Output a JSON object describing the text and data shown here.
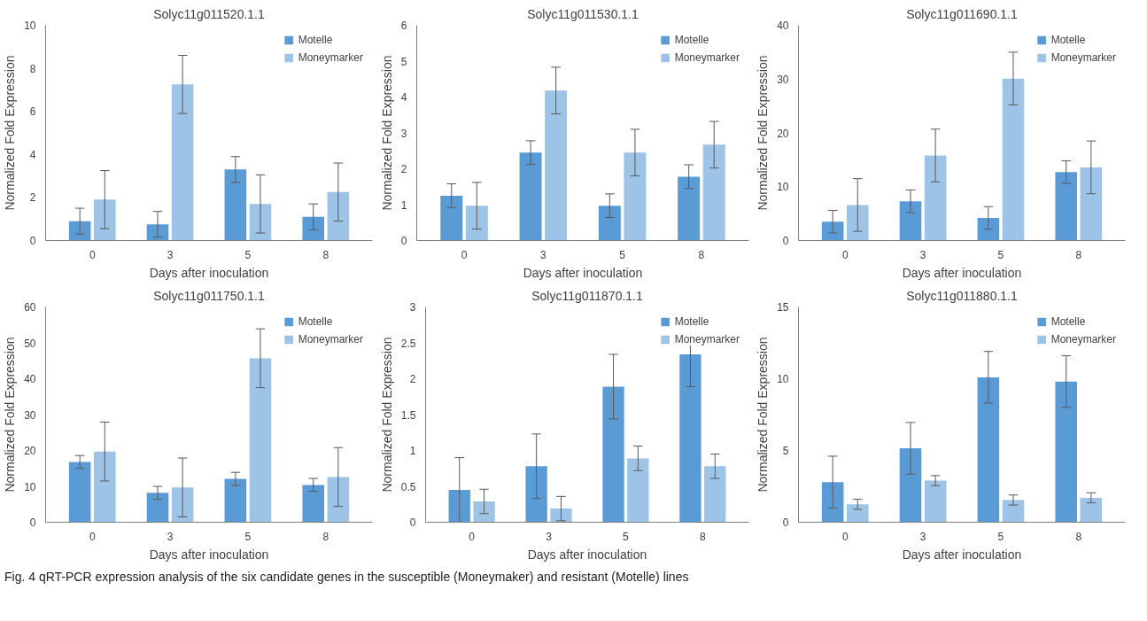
{
  "chart_data": [
    {
      "type": "bar",
      "title": "Solyc11g011520.1.1",
      "xlabel": "Days after inoculation",
      "ylabel": "Normalized Fold Expression",
      "categories": [
        "0",
        "3",
        "5",
        "8"
      ],
      "ylim": [
        0,
        10
      ],
      "yticks": [
        0,
        2,
        4,
        6,
        8,
        10
      ],
      "grid": false,
      "legend": "top right",
      "series": [
        {
          "name": "Motelle",
          "color": "#5b9bd5",
          "values": [
            0.9,
            0.75,
            3.3,
            1.1
          ],
          "errors": [
            0.6,
            0.6,
            0.6,
            0.6
          ]
        },
        {
          "name": "Moneymarker",
          "color": "#9dc3e6",
          "values": [
            1.9,
            7.25,
            1.7,
            2.25
          ],
          "errors": [
            1.35,
            1.35,
            1.35,
            1.35
          ]
        }
      ]
    },
    {
      "type": "bar",
      "title": "Solyc11g011530.1.1",
      "xlabel": "Days after inoculation",
      "ylabel": "Normalized Fold Expression",
      "categories": [
        "0",
        "3",
        "5",
        "8"
      ],
      "ylim": [
        0,
        6
      ],
      "yticks": [
        0,
        1,
        2,
        3,
        4,
        5,
        6
      ],
      "grid": false,
      "legend": "top right",
      "series": [
        {
          "name": "Motelle",
          "color": "#5b9bd5",
          "values": [
            1.25,
            2.45,
            0.97,
            1.78
          ],
          "errors": [
            0.33,
            0.33,
            0.33,
            0.33
          ]
        },
        {
          "name": "Moneymarker",
          "color": "#9dc3e6",
          "values": [
            0.97,
            4.18,
            2.45,
            2.67
          ],
          "errors": [
            0.65,
            0.65,
            0.65,
            0.65
          ]
        }
      ]
    },
    {
      "type": "bar",
      "title": "Solyc11g011690.1.1",
      "xlabel": "Days after inoculation",
      "ylabel": "Normalized Fold Expression",
      "categories": [
        "0",
        "3",
        "5",
        "8"
      ],
      "ylim": [
        0,
        40
      ],
      "yticks": [
        0,
        10,
        20,
        30,
        40
      ],
      "grid": false,
      "legend": "top right",
      "series": [
        {
          "name": "Motelle",
          "color": "#5b9bd5",
          "values": [
            3.5,
            7.3,
            4.2,
            12.7
          ],
          "errors": [
            2.1,
            2.1,
            2.1,
            2.1
          ]
        },
        {
          "name": "Moneymarker",
          "color": "#9dc3e6",
          "values": [
            6.6,
            15.8,
            30.1,
            13.6
          ],
          "errors": [
            4.9,
            4.9,
            4.9,
            4.9
          ]
        }
      ]
    },
    {
      "type": "bar",
      "title": "Solyc11g011750.1.1",
      "xlabel": "Days after inoculation",
      "ylabel": "Normalized Fold Expression",
      "categories": [
        "0",
        "3",
        "5",
        "8"
      ],
      "ylim": [
        0,
        60
      ],
      "yticks": [
        0,
        10,
        20,
        30,
        40,
        50,
        60
      ],
      "grid": false,
      "legend": "top right",
      "series": [
        {
          "name": "Motelle",
          "color": "#5b9bd5",
          "values": [
            16.8,
            8.2,
            12.1,
            10.4
          ],
          "errors": [
            1.8,
            1.8,
            1.8,
            1.8
          ]
        },
        {
          "name": "Moneymarker",
          "color": "#9dc3e6",
          "values": [
            19.7,
            9.7,
            45.7,
            12.6
          ],
          "errors": [
            8.2,
            8.2,
            8.2,
            8.2
          ]
        }
      ]
    },
    {
      "type": "bar",
      "title": "Solyc11g011870.1.1",
      "xlabel": "Days after inoculation",
      "ylabel": "Normalized Fold Expression",
      "categories": [
        "0",
        "3",
        "5",
        "8"
      ],
      "ylim": [
        0,
        3
      ],
      "yticks": [
        0,
        0.5,
        1,
        1.5,
        2,
        2.5,
        3
      ],
      "grid": false,
      "legend": "top right",
      "series": [
        {
          "name": "Motelle",
          "color": "#5b9bd5",
          "values": [
            0.45,
            0.78,
            1.89,
            2.34
          ],
          "errors": [
            0.45,
            0.45,
            0.45,
            0.45
          ]
        },
        {
          "name": "Moneymarker",
          "color": "#9dc3e6",
          "values": [
            0.29,
            0.19,
            0.89,
            0.78
          ],
          "errors": [
            0.17,
            0.17,
            0.17,
            0.17
          ]
        }
      ]
    },
    {
      "type": "bar",
      "title": "Solyc11g011880.1.1",
      "xlabel": "Days after inoculation",
      "ylabel": "Normalized Fold Expression",
      "categories": [
        "0",
        "3",
        "5",
        "8"
      ],
      "ylim": [
        0,
        15
      ],
      "yticks": [
        0,
        5,
        10,
        15
      ],
      "grid": false,
      "legend": "top right",
      "annotations": [
        "Fig. 4 qRT-PCR expression analysis of the six candidate genes in the susceptible (Moneymaker) and resistant (Motelle) lines"
      ],
      "series": [
        {
          "name": "Motelle",
          "color": "#5b9bd5",
          "values": [
            2.8,
            5.15,
            10.1,
            9.8
          ],
          "errors": [
            1.8,
            1.8,
            1.8,
            1.8
          ]
        },
        {
          "name": "Moneymarker",
          "color": "#9dc3e6",
          "values": [
            1.25,
            2.9,
            1.55,
            1.7
          ],
          "errors": [
            0.35,
            0.35,
            0.35,
            0.35
          ]
        }
      ]
    }
  ]
}
